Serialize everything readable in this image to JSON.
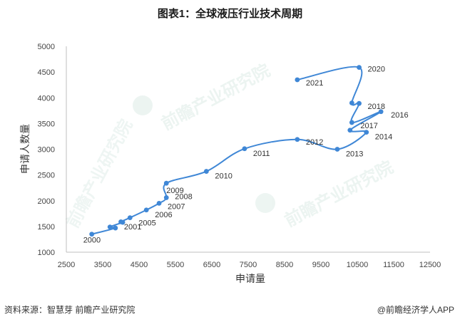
{
  "title": "图表1：全球液压行业技术周期",
  "footer": {
    "source": "资料来源：智慧芽 前瞻产业研究院",
    "brand": "@前瞻经济学人APP"
  },
  "watermark": {
    "text": "前瞻产业研究院"
  },
  "chart_data": {
    "type": "line",
    "title": "图表1：全球液压行业技术周期",
    "xlabel": "申请量",
    "ylabel": "申请人数量",
    "xlim": [
      2500,
      12500
    ],
    "ylim": [
      1000,
      5000
    ],
    "xticks": [
      2500,
      3500,
      4500,
      5500,
      6500,
      7500,
      8500,
      9500,
      10500,
      11500,
      12500
    ],
    "yticks": [
      1000,
      1500,
      2000,
      2500,
      3000,
      3500,
      4000,
      4500,
      5000
    ],
    "grid": false,
    "legend": "none",
    "line_color": "#3f87d6",
    "smooth": true,
    "points": [
      {
        "label": "2000",
        "x": 3200,
        "y": 1350
      },
      {
        "label": "2001",
        "x": 3850,
        "y": 1470
      },
      {
        "label": "",
        "x": 3700,
        "y": 1490
      },
      {
        "label": "",
        "x": 4050,
        "y": 1580
      },
      {
        "label": "",
        "x": 4000,
        "y": 1590
      },
      {
        "label": "2005",
        "x": 4250,
        "y": 1670
      },
      {
        "label": "2006",
        "x": 4700,
        "y": 1820
      },
      {
        "label": "2007",
        "x": 5050,
        "y": 1950
      },
      {
        "label": "2008",
        "x": 5250,
        "y": 2060
      },
      {
        "label": "2009",
        "x": 5250,
        "y": 2340
      },
      {
        "label": "2010",
        "x": 6350,
        "y": 2570
      },
      {
        "label": "2011",
        "x": 7400,
        "y": 3010
      },
      {
        "label": "2012",
        "x": 8850,
        "y": 3190
      },
      {
        "label": "2013",
        "x": 9950,
        "y": 3000
      },
      {
        "label": "2014",
        "x": 10750,
        "y": 3330
      },
      {
        "label": "",
        "x": 10300,
        "y": 3370
      },
      {
        "label": "2016",
        "x": 11150,
        "y": 3730
      },
      {
        "label": "2017",
        "x": 10350,
        "y": 3520
      },
      {
        "label": "2018",
        "x": 10550,
        "y": 3890
      },
      {
        "label": "",
        "x": 10350,
        "y": 3900
      },
      {
        "label": "2020",
        "x": 10550,
        "y": 4590
      },
      {
        "label": "2021",
        "x": 8850,
        "y": 4350
      }
    ]
  }
}
